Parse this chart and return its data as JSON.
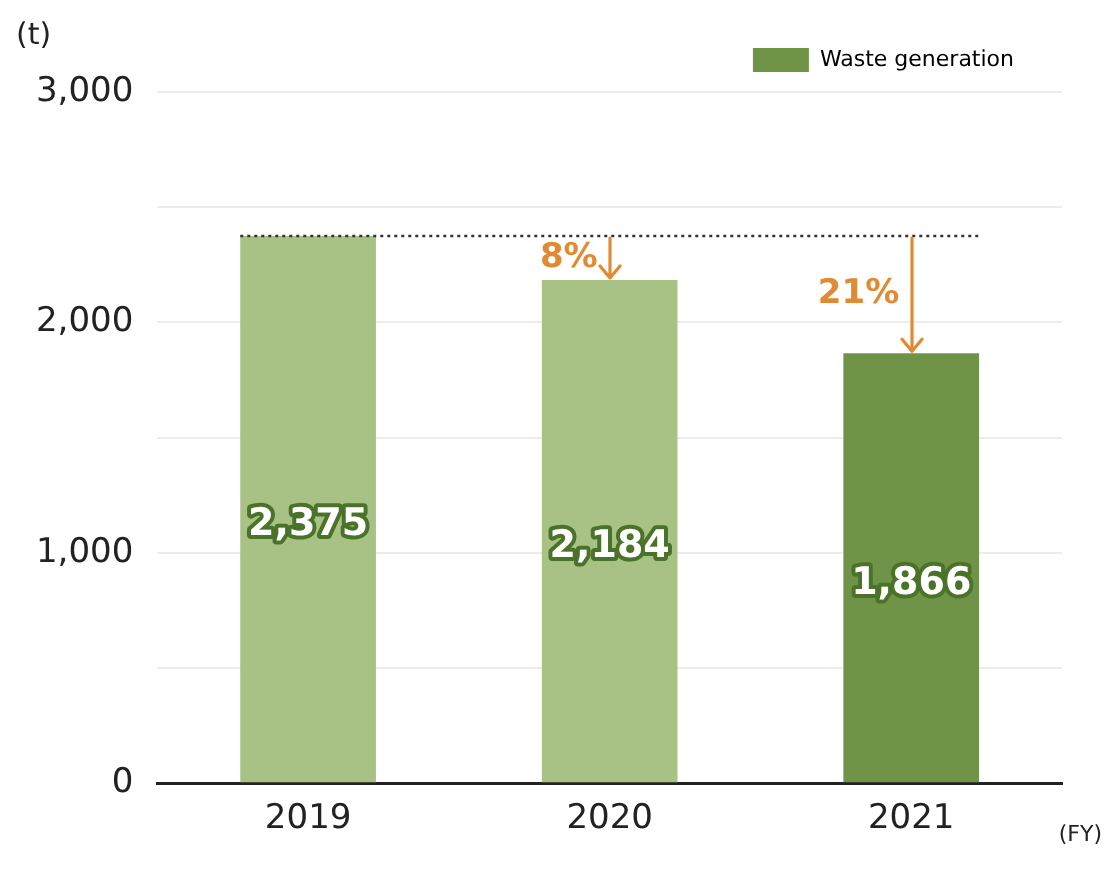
{
  "chart_data": {
    "type": "bar",
    "xlabel": "(FY)",
    "ylabel": "(t)",
    "categories": [
      "2019",
      "2020",
      "2021"
    ],
    "series": [
      {
        "name": "Waste generation",
        "color": "#6f9447",
        "colors": [
          "#a8c286",
          "#a8c286",
          "#6f9447"
        ],
        "values": [
          2375,
          2184,
          1866
        ],
        "value_labels": [
          "2,375",
          "2,184",
          "1,866"
        ]
      }
    ],
    "ylim": [
      0,
      3000
    ],
    "yticks": [
      0,
      {
        "value": 500,
        "label": null
      },
      {
        "value": 1000,
        "label": "1,000"
      },
      {
        "value": 1500,
        "label": null
      },
      {
        "value": 2000,
        "label": "2,000"
      },
      {
        "value": 2500,
        "label": null
      },
      {
        "value": 3000,
        "label": "3,000"
      }
    ],
    "grid": "y",
    "legend": "top right",
    "ref_lines": [
      {
        "axis": "y",
        "value": 2375,
        "color": "#333333",
        "line_style": "dotted"
      }
    ],
    "annotations": [
      {
        "text": "8%",
        "x": "2020",
        "y": 2184
      },
      {
        "text": "21%",
        "x": "2021",
        "y": 1866
      }
    ]
  }
}
